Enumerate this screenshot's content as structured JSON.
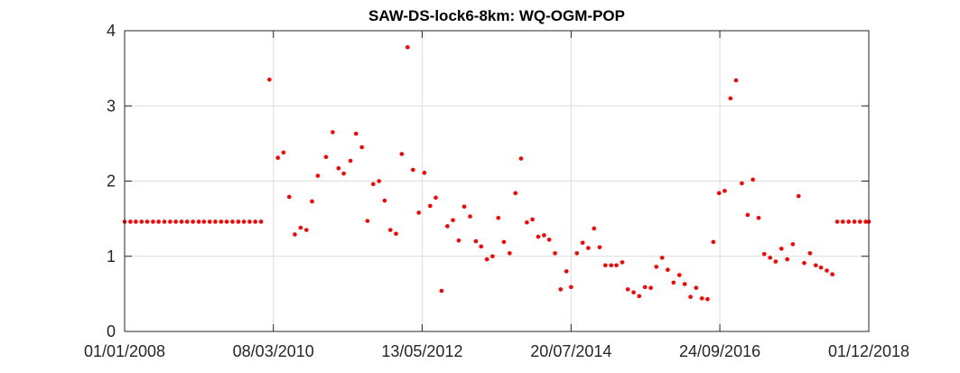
{
  "chart_data": {
    "type": "scatter",
    "title": "SAW-DS-lock6-8km: WQ-OGM-POP",
    "xlabel": "",
    "ylabel": "",
    "x_axis_type": "date",
    "xlim": [
      "2008-01-01",
      "2018-12-01"
    ],
    "ylim": [
      0,
      4
    ],
    "grid": true,
    "marker_color": "#ff0000",
    "axis_color": "#262626",
    "grid_color": "#dedede",
    "yticks": [
      0,
      1,
      2,
      3,
      4
    ],
    "ytick_labels": [
      "0",
      "1",
      "2",
      "3",
      "4"
    ],
    "xticks": [
      "2008-01-01",
      "2010-03-08",
      "2012-05-13",
      "2014-07-20",
      "2016-09-24",
      "2018-12-01"
    ],
    "xtick_labels": [
      "01/01/2008",
      "08/03/2010",
      "13/05/2012",
      "20/07/2014",
      "24/09/2016",
      "01/12/2018"
    ],
    "series": [
      {
        "points": [
          [
            "2008-01-01",
            1.46
          ],
          [
            "2008-02-01",
            1.46
          ],
          [
            "2008-03-01",
            1.46
          ],
          [
            "2008-04-01",
            1.46
          ],
          [
            "2008-05-01",
            1.46
          ],
          [
            "2008-06-01",
            1.46
          ],
          [
            "2008-07-01",
            1.46
          ],
          [
            "2008-08-01",
            1.46
          ],
          [
            "2008-09-01",
            1.46
          ],
          [
            "2008-10-01",
            1.46
          ],
          [
            "2008-11-01",
            1.46
          ],
          [
            "2008-12-01",
            1.46
          ],
          [
            "2009-01-01",
            1.46
          ],
          [
            "2009-02-01",
            1.46
          ],
          [
            "2009-03-01",
            1.46
          ],
          [
            "2009-04-01",
            1.46
          ],
          [
            "2009-05-01",
            1.46
          ],
          [
            "2009-06-01",
            1.46
          ],
          [
            "2009-07-01",
            1.46
          ],
          [
            "2009-08-01",
            1.46
          ],
          [
            "2009-09-01",
            1.46
          ],
          [
            "2009-10-01",
            1.46
          ],
          [
            "2009-11-01",
            1.46
          ],
          [
            "2009-12-01",
            1.46
          ],
          [
            "2010-01-01",
            1.46
          ],
          [
            "2010-02-15",
            3.35
          ],
          [
            "2010-04-01",
            2.31
          ],
          [
            "2010-05-01",
            2.38
          ],
          [
            "2010-06-01",
            1.79
          ],
          [
            "2010-07-01",
            1.29
          ],
          [
            "2010-08-01",
            1.38
          ],
          [
            "2010-09-01",
            1.35
          ],
          [
            "2010-10-01",
            1.73
          ],
          [
            "2010-11-01",
            2.07
          ],
          [
            "2010-12-15",
            2.32
          ],
          [
            "2011-01-20",
            2.65
          ],
          [
            "2011-02-20",
            2.17
          ],
          [
            "2011-03-20",
            2.1
          ],
          [
            "2011-04-25",
            2.27
          ],
          [
            "2011-05-25",
            2.63
          ],
          [
            "2011-06-25",
            2.45
          ],
          [
            "2011-07-25",
            1.47
          ],
          [
            "2011-08-25",
            1.96
          ],
          [
            "2011-09-25",
            2.0
          ],
          [
            "2011-10-25",
            1.74
          ],
          [
            "2011-11-25",
            1.35
          ],
          [
            "2011-12-25",
            1.3
          ],
          [
            "2012-01-25",
            2.36
          ],
          [
            "2012-02-25",
            3.78
          ],
          [
            "2012-03-25",
            2.15
          ],
          [
            "2012-04-25",
            1.58
          ],
          [
            "2012-05-25",
            2.11
          ],
          [
            "2012-06-25",
            1.67
          ],
          [
            "2012-07-25",
            1.78
          ],
          [
            "2012-08-25",
            0.54
          ],
          [
            "2012-09-25",
            1.4
          ],
          [
            "2012-10-25",
            1.48
          ],
          [
            "2012-11-25",
            1.21
          ],
          [
            "2012-12-25",
            1.66
          ],
          [
            "2013-01-25",
            1.53
          ],
          [
            "2013-02-25",
            1.2
          ],
          [
            "2013-03-25",
            1.13
          ],
          [
            "2013-04-25",
            0.96
          ],
          [
            "2013-05-25",
            1.0
          ],
          [
            "2013-06-25",
            1.51
          ],
          [
            "2013-07-25",
            1.19
          ],
          [
            "2013-08-25",
            1.04
          ],
          [
            "2013-09-25",
            1.84
          ],
          [
            "2013-10-25",
            2.3
          ],
          [
            "2013-11-25",
            1.45
          ],
          [
            "2013-12-25",
            1.49
          ],
          [
            "2014-01-25",
            1.26
          ],
          [
            "2014-02-25",
            1.28
          ],
          [
            "2014-03-25",
            1.22
          ],
          [
            "2014-04-25",
            1.04
          ],
          [
            "2014-05-25",
            0.56
          ],
          [
            "2014-06-25",
            0.8
          ],
          [
            "2014-07-20",
            0.59
          ],
          [
            "2014-08-20",
            1.04
          ],
          [
            "2014-09-20",
            1.18
          ],
          [
            "2014-10-20",
            1.11
          ],
          [
            "2014-11-20",
            1.37
          ],
          [
            "2014-12-20",
            1.12
          ],
          [
            "2015-01-20",
            0.88
          ],
          [
            "2015-02-20",
            0.88
          ],
          [
            "2015-03-20",
            0.88
          ],
          [
            "2015-04-20",
            0.92
          ],
          [
            "2015-05-20",
            0.56
          ],
          [
            "2015-06-20",
            0.52
          ],
          [
            "2015-07-20",
            0.47
          ],
          [
            "2015-08-20",
            0.59
          ],
          [
            "2015-09-20",
            0.58
          ],
          [
            "2015-10-20",
            0.86
          ],
          [
            "2015-11-20",
            0.98
          ],
          [
            "2015-12-20",
            0.82
          ],
          [
            "2016-01-20",
            0.65
          ],
          [
            "2016-02-20",
            0.75
          ],
          [
            "2016-03-20",
            0.63
          ],
          [
            "2016-04-20",
            0.46
          ],
          [
            "2016-05-20",
            0.58
          ],
          [
            "2016-06-20",
            0.44
          ],
          [
            "2016-07-20",
            0.43
          ],
          [
            "2016-08-20",
            1.19
          ],
          [
            "2016-09-20",
            1.84
          ],
          [
            "2016-10-20",
            1.87
          ],
          [
            "2016-11-20",
            3.1
          ],
          [
            "2016-12-20",
            3.34
          ],
          [
            "2017-01-20",
            1.97
          ],
          [
            "2017-02-20",
            1.55
          ],
          [
            "2017-03-20",
            2.02
          ],
          [
            "2017-04-20",
            1.51
          ],
          [
            "2017-05-20",
            1.03
          ],
          [
            "2017-06-20",
            0.98
          ],
          [
            "2017-07-20",
            0.93
          ],
          [
            "2017-08-20",
            1.1
          ],
          [
            "2017-09-20",
            0.96
          ],
          [
            "2017-10-20",
            1.16
          ],
          [
            "2017-11-20",
            1.8
          ],
          [
            "2017-12-20",
            0.91
          ],
          [
            "2018-01-20",
            1.04
          ],
          [
            "2018-02-20",
            0.88
          ],
          [
            "2018-03-20",
            0.85
          ],
          [
            "2018-04-20",
            0.81
          ],
          [
            "2018-05-20",
            0.76
          ],
          [
            "2018-06-15",
            1.46
          ],
          [
            "2018-07-15",
            1.46
          ],
          [
            "2018-08-15",
            1.46
          ],
          [
            "2018-09-15",
            1.46
          ],
          [
            "2018-10-15",
            1.46
          ],
          [
            "2018-11-15",
            1.46
          ],
          [
            "2018-12-01",
            1.46
          ]
        ]
      }
    ]
  }
}
